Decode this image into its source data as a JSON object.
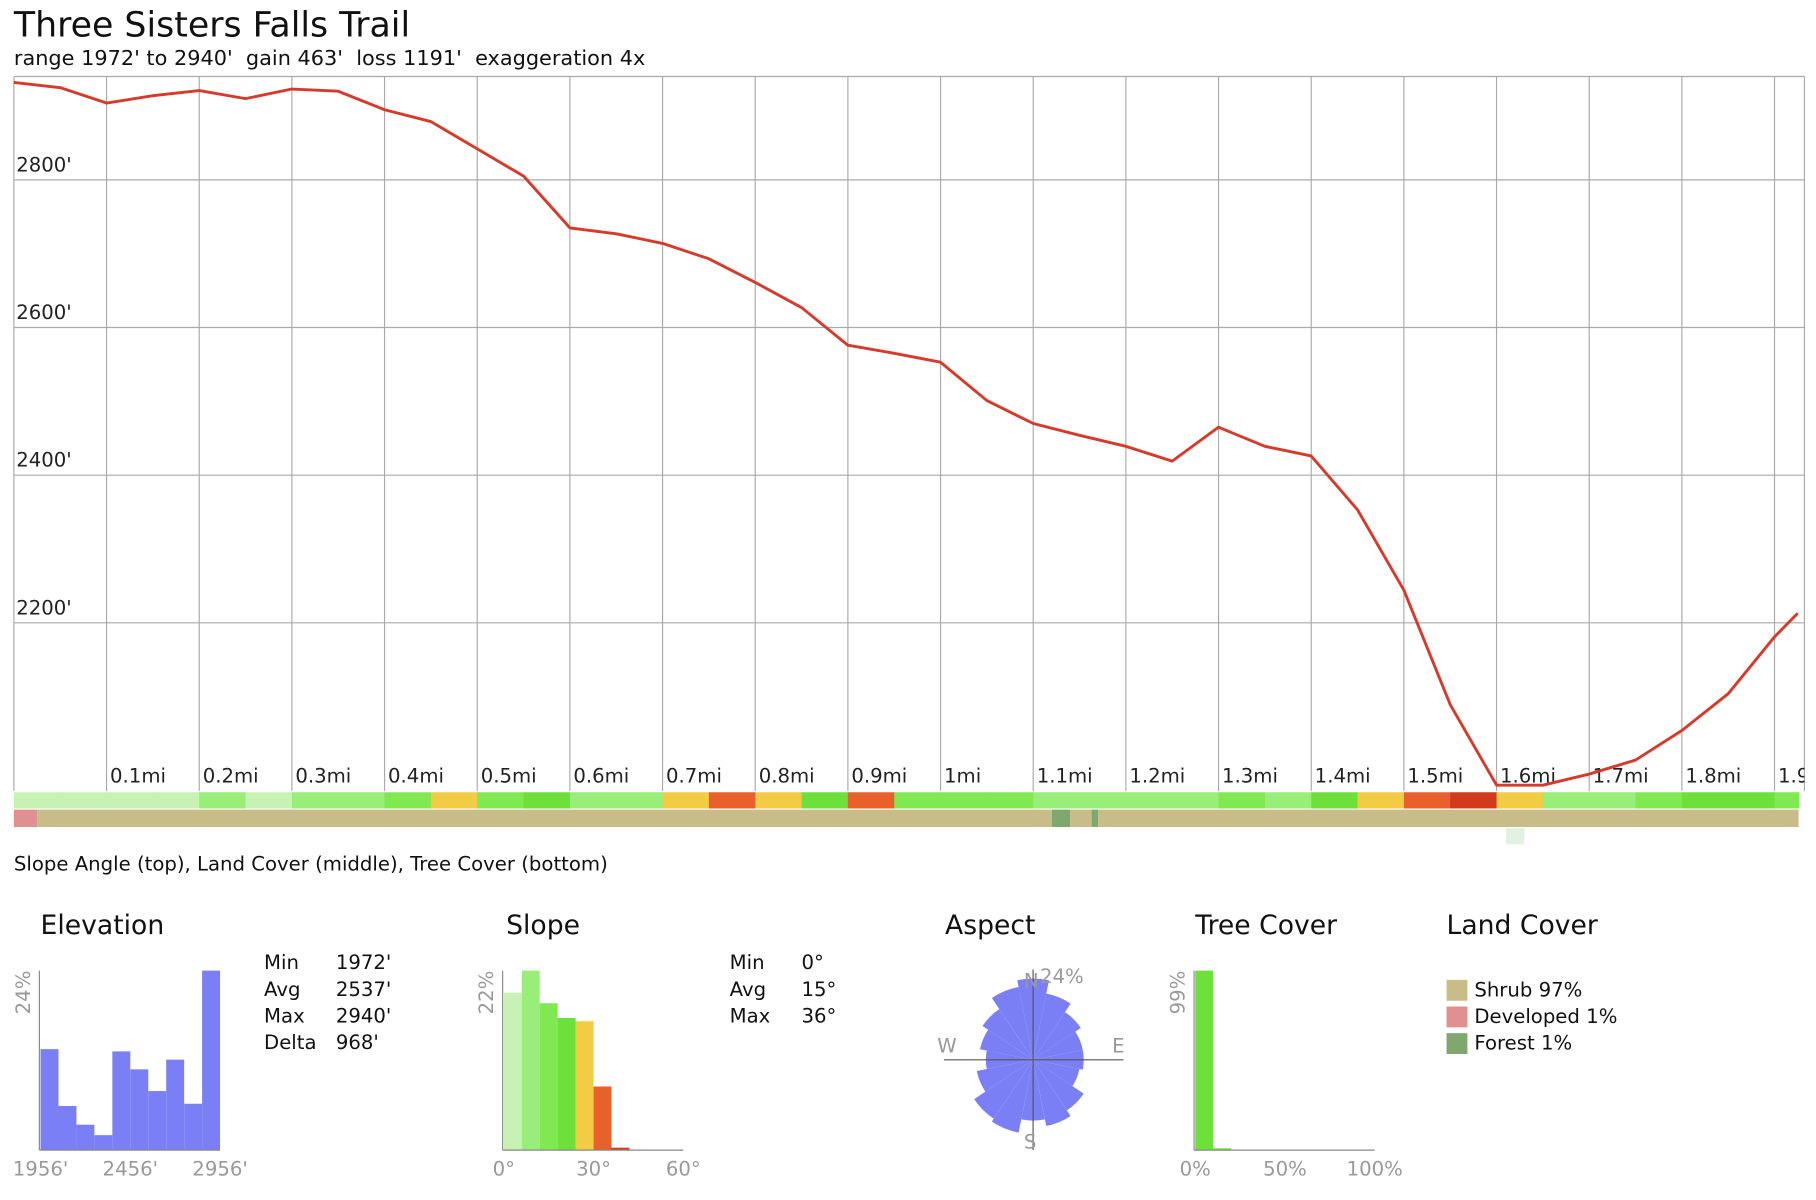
{
  "header": {
    "title": "Three Sisters Falls Trail",
    "subtitle": "range 1972' to 2940'  gain 463'  loss 1191'  exaggeration 4x"
  },
  "chart_data": [
    {
      "type": "line",
      "color": "#d63a2a",
      "grid": true,
      "x": [
        0,
        0.05,
        0.1,
        0.15,
        0.2,
        0.25,
        0.3,
        0.35,
        0.4,
        0.45,
        0.5,
        0.55,
        0.6,
        0.65,
        0.7,
        0.75,
        0.8,
        0.85,
        0.9,
        0.95,
        1.0,
        1.05,
        1.1,
        1.15,
        1.2,
        1.25,
        1.3,
        1.35,
        1.4,
        1.45,
        1.5,
        1.55,
        1.6,
        1.65,
        1.7,
        1.75,
        1.8,
        1.85,
        1.9,
        1.925
      ],
      "values": [
        2932,
        2925,
        2904,
        2914,
        2921,
        2910,
        2923,
        2920,
        2895,
        2879,
        2842,
        2805,
        2735,
        2727,
        2714,
        2693,
        2661,
        2627,
        2576,
        2565,
        2553,
        2501,
        2470,
        2454,
        2439,
        2419,
        2465,
        2439,
        2426,
        2353,
        2244,
        2089,
        1980,
        1980,
        1995,
        2014,
        2054,
        2104,
        2181,
        2213
      ],
      "xlim": [
        0,
        1.926
      ],
      "ylim": [
        1972,
        2940
      ],
      "xticks": [
        {
          "value": 0.1,
          "label": "0.1mi"
        },
        {
          "value": 0.2,
          "label": "0.2mi"
        },
        {
          "value": 0.3,
          "label": "0.3mi"
        },
        {
          "value": 0.4,
          "label": "0.4mi"
        },
        {
          "value": 0.5,
          "label": "0.5mi"
        },
        {
          "value": 0.6,
          "label": "0.6mi"
        },
        {
          "value": 0.7,
          "label": "0.7mi"
        },
        {
          "value": 0.8,
          "label": "0.8mi"
        },
        {
          "value": 0.9,
          "label": "0.9mi"
        },
        {
          "value": 1.0,
          "label": "1mi"
        },
        {
          "value": 1.1,
          "label": "1.1mi"
        },
        {
          "value": 1.2,
          "label": "1.2mi"
        },
        {
          "value": 1.3,
          "label": "1.3mi"
        },
        {
          "value": 1.4,
          "label": "1.4mi"
        },
        {
          "value": 1.5,
          "label": "1.5mi"
        },
        {
          "value": 1.6,
          "label": "1.6mi"
        },
        {
          "value": 1.7,
          "label": "1.7mi"
        },
        {
          "value": 1.8,
          "label": "1.8mi"
        },
        {
          "value": 1.9,
          "label": "1.9mi"
        }
      ],
      "yticks": [
        {
          "value": 2800,
          "label": "2800'"
        },
        {
          "value": 2600,
          "label": "2600'"
        },
        {
          "value": 2400,
          "label": "2400'"
        },
        {
          "value": 2200,
          "label": "2200'"
        }
      ],
      "slope_strip": {
        "x": [
          0,
          0.05,
          0.1,
          0.15,
          0.2,
          0.25,
          0.3,
          0.35,
          0.4,
          0.45,
          0.5,
          0.55,
          0.6,
          0.65,
          0.7,
          0.75,
          0.8,
          0.85,
          0.9,
          0.95,
          1.0,
          1.05,
          1.1,
          1.15,
          1.2,
          1.25,
          1.3,
          1.35,
          1.4,
          1.45,
          1.5,
          1.55,
          1.6,
          1.65,
          1.7,
          1.75,
          1.8,
          1.85,
          1.9
        ],
        "values": [
          3,
          2,
          4,
          5,
          6,
          5,
          8,
          10,
          12,
          26,
          15,
          18,
          8,
          9,
          28,
          31,
          26,
          20,
          32,
          16,
          14,
          16,
          10,
          8,
          9,
          8,
          15,
          10,
          18,
          27,
          32,
          36,
          26,
          6,
          8,
          14,
          18,
          20,
          16
        ]
      },
      "land_cover_strip": {
        "bins": [
          0,
          0.025,
          1.12,
          1.14,
          1.163,
          1.17,
          1.926
        ],
        "colors": [
          "#e09090",
          "#c8bc88",
          "#7fa870",
          "#c8bc88",
          "#7fa870",
          "#c8bc88"
        ]
      },
      "tree_cover_strip": {
        "bins": [
          1.61,
          1.63
        ],
        "colors": [
          "#e2f2e2"
        ]
      },
      "caption": "Slope Angle (top), Land Cover (middle), Tree Cover (bottom)"
    },
    {
      "type": "histogram",
      "title": "Elevation",
      "color": "#7b7ff5",
      "bins": [
        1956,
        2056,
        2156,
        2256,
        2356,
        2456,
        2556,
        2656,
        2756,
        2856,
        2956
      ],
      "values": [
        13.5,
        5.9,
        3.4,
        2.0,
        13.2,
        10.8,
        7.9,
        12.1,
        6.2,
        24
      ],
      "xlim": [
        1956,
        2956
      ],
      "ylim": [
        0,
        24
      ],
      "xticks": [
        {
          "value": 1956,
          "label": "1956'"
        },
        {
          "value": 2456,
          "label": "2456'"
        },
        {
          "value": 2956,
          "label": "2956'"
        }
      ],
      "yticks": [
        {
          "value": 24,
          "label": "24%"
        }
      ],
      "stats": [
        [
          "Min",
          "1972'"
        ],
        [
          "Avg",
          "2537'"
        ],
        [
          "Max",
          "2940'"
        ],
        [
          "Delta",
          "968'"
        ]
      ]
    },
    {
      "type": "histogram",
      "title": "Slope",
      "bins": [
        0,
        6,
        12,
        18,
        24,
        30,
        36,
        42
      ],
      "values": [
        19.3,
        22,
        18.0,
        16.2,
        15.8,
        7.8,
        0.3
      ],
      "colors": [
        "#c8f2b4",
        "#98ee78",
        "#80e850",
        "#6ee03c",
        "#f2cc44",
        "#e8602c",
        "#d23a1e"
      ],
      "xlim": [
        0,
        60
      ],
      "ylim": [
        0,
        22
      ],
      "xticks": [
        {
          "value": 0,
          "label": "0°"
        },
        {
          "value": 30,
          "label": "30°"
        },
        {
          "value": 60,
          "label": "60°"
        }
      ],
      "yticks": [
        {
          "value": 22,
          "label": "22%"
        }
      ],
      "stats": [
        [
          "Min",
          "0°"
        ],
        [
          "Avg",
          "15°"
        ],
        [
          "Max",
          "36°"
        ]
      ]
    },
    {
      "type": "polar",
      "title": "Aspect",
      "color": "#7b7ff5",
      "values": [
        24,
        20,
        17,
        15,
        15,
        14,
        18,
        20,
        18,
        22,
        21,
        17,
        14,
        16,
        18,
        22
      ],
      "rlim": [
        0,
        24
      ],
      "rticks": [
        {
          "value": 24,
          "label": "24%"
        }
      ],
      "direction_labels": [
        "N",
        "E",
        "S",
        "W"
      ]
    },
    {
      "type": "histogram",
      "title": "Tree Cover",
      "color": "#6ee03c",
      "bins": [
        0,
        10,
        20,
        30,
        40,
        50,
        60,
        70,
        80,
        90,
        100
      ],
      "values": [
        99,
        1,
        0,
        0,
        0,
        0,
        0,
        0,
        0,
        0
      ],
      "xlim": [
        0,
        100
      ],
      "ylim": [
        0,
        99
      ],
      "xticks": [
        {
          "value": 0,
          "label": "0%"
        },
        {
          "value": 50,
          "label": "50%"
        },
        {
          "value": 100,
          "label": "100%"
        }
      ],
      "yticks": [
        {
          "value": 99,
          "label": "99%"
        }
      ]
    },
    {
      "type": "legend",
      "title": "Land Cover",
      "categories": [
        "Shrub",
        "Developed",
        "Forest"
      ],
      "values": [
        97,
        1,
        1
      ],
      "value_labels": [
        "97%",
        "1%",
        "1%"
      ],
      "colors": [
        "#c8bc88",
        "#e09090",
        "#7fa870"
      ]
    }
  ]
}
